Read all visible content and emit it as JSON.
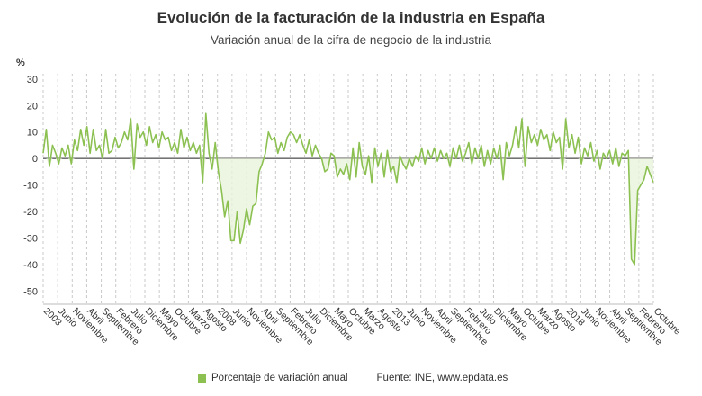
{
  "header": {
    "title": "Evolución de la facturación de la industria en España",
    "subtitle": "Variación anual de la cifra de negocio de la industria"
  },
  "legend": {
    "label": "Porcentaje de variación anual",
    "source": "Fuente: INE, www.epdata.es",
    "color": "#8cc152"
  },
  "chart_data": {
    "type": "line",
    "ylabel": "%",
    "ylim": [
      -55,
      32
    ],
    "yticks": [
      30,
      20,
      10,
      0,
      -10,
      -20,
      -30,
      -40,
      -50
    ],
    "grid": "vertical dashed",
    "series": [
      {
        "name": "Porcentaje de variación anual",
        "color": "#8cc152",
        "values": [
          2,
          11,
          -3,
          5,
          2,
          -2,
          4,
          1,
          5,
          -2,
          7,
          3,
          11,
          5,
          12,
          2,
          11,
          3,
          5,
          0,
          11,
          2,
          3,
          8,
          4,
          6,
          10,
          7,
          15,
          -4,
          13,
          8,
          10,
          5,
          12,
          6,
          9,
          4,
          10,
          7,
          8,
          3,
          6,
          2,
          11,
          4,
          8,
          3,
          6,
          2,
          5,
          -9,
          17,
          2,
          -4,
          6,
          -5,
          -12,
          -22,
          -16,
          -31,
          -31,
          -20,
          -32,
          -27,
          -19,
          -25,
          -18,
          -17,
          -5,
          -2,
          2,
          10,
          7,
          8,
          2,
          6,
          3,
          8,
          10,
          9,
          6,
          9,
          5,
          2,
          7,
          1,
          5,
          2,
          0,
          -5,
          -4,
          2,
          1,
          -7,
          -4,
          -6,
          -2,
          -8,
          4,
          -7,
          6,
          -3,
          -6,
          1,
          -9,
          4,
          -3,
          2,
          -7,
          3,
          -5,
          -3,
          -9,
          1,
          -2,
          -4,
          0,
          -3,
          1,
          -1,
          4,
          -2,
          3,
          0,
          4,
          -1,
          3,
          0,
          2,
          -3,
          4,
          0,
          5,
          -1,
          2,
          6,
          -2,
          4,
          0,
          5,
          -3,
          3,
          -2,
          4,
          0,
          5,
          -8,
          6,
          1,
          5,
          12,
          4,
          15,
          -3,
          12,
          6,
          9,
          5,
          11,
          7,
          9,
          3,
          10,
          6,
          8,
          -4,
          15,
          4,
          9,
          2,
          8,
          -2,
          4,
          1,
          6,
          -1,
          3,
          -4,
          2,
          0,
          3,
          -2,
          4,
          -3,
          2,
          1,
          3,
          -38,
          -40,
          -12,
          -10,
          -8,
          -3,
          -6,
          -9
        ]
      }
    ],
    "x_tick_labels": [
      "2003",
      "Junio",
      "Noviembre",
      "Abril",
      "Septiembre",
      "Febrero",
      "Julio",
      "Diciembre",
      "Mayo",
      "Octubre",
      "Marzo",
      "Agosto",
      "2008",
      "Junio",
      "Noviembre",
      "Abril",
      "Septiembre",
      "Febrero",
      "Julio",
      "Diciembre",
      "Mayo",
      "Octubre",
      "Marzo",
      "Agosto",
      "2013",
      "Junio",
      "Noviembre",
      "Abril",
      "Septiembre",
      "Febrero",
      "Julio",
      "Diciembre",
      "Mayo",
      "Octubre",
      "Marzo",
      "Agosto",
      "2018",
      "Junio",
      "Noviembre",
      "Abril",
      "Septiembre",
      "Febrero",
      "Octubre"
    ]
  }
}
